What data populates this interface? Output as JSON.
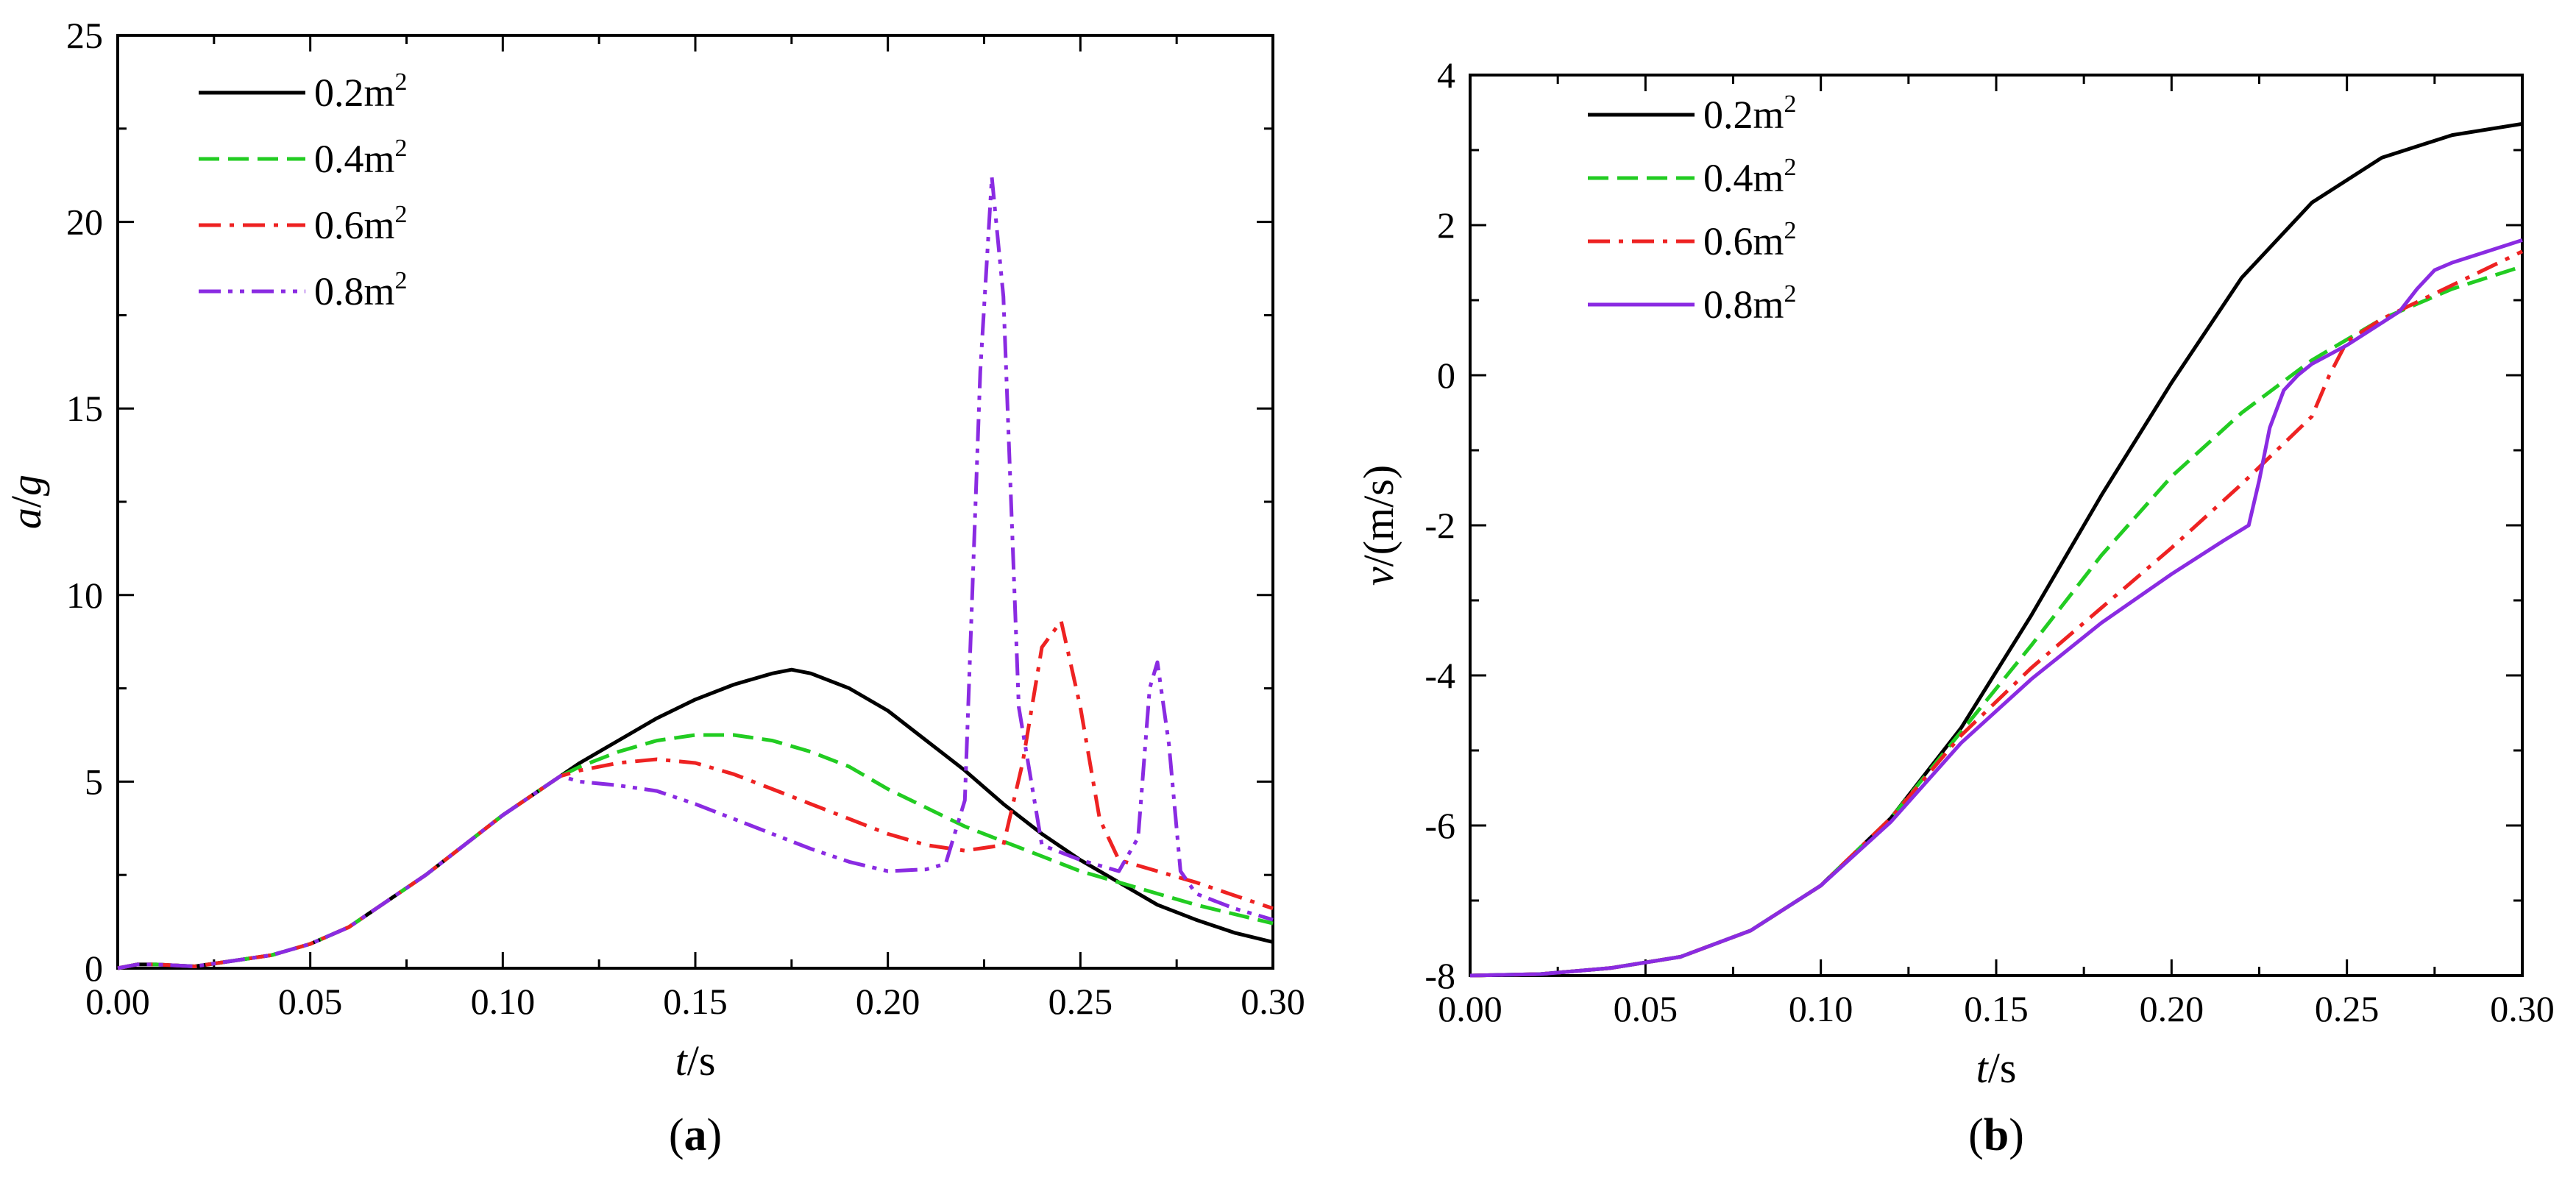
{
  "chart_data": [
    {
      "type": "line",
      "panel": "(a)",
      "panel_letter": "a",
      "xlabel_var": "t",
      "xlabel_unit": "/s",
      "ylabel_var": "a",
      "ylabel_unit": "/",
      "ylabel_var2": "g",
      "xlim": [
        0,
        0.3
      ],
      "ylim": [
        0,
        25
      ],
      "xticks": [
        0,
        0.05,
        0.1,
        0.15,
        0.2,
        0.25,
        0.3
      ],
      "xtick_labels": [
        "0.00",
        "0.05",
        "0.10",
        "0.15",
        "0.20",
        "0.25",
        "0.30"
      ],
      "yticks": [
        0,
        5,
        10,
        15,
        20,
        25
      ],
      "ytick_labels": [
        "0",
        "5",
        "10",
        "15",
        "20",
        "25"
      ],
      "legend_position": "top-left",
      "series": [
        {
          "name": "0.2m",
          "sup": "2",
          "color": "#000000",
          "dash": "solid",
          "x": [
            0,
            0.005,
            0.01,
            0.02,
            0.03,
            0.04,
            0.05,
            0.06,
            0.07,
            0.08,
            0.09,
            0.1,
            0.11,
            0.115,
            0.12,
            0.13,
            0.14,
            0.15,
            0.16,
            0.17,
            0.175,
            0.18,
            0.19,
            0.2,
            0.21,
            0.22,
            0.23,
            0.24,
            0.25,
            0.26,
            0.27,
            0.28,
            0.29,
            0.3
          ],
          "y": [
            0,
            0.1,
            0.1,
            0.05,
            0.2,
            0.35,
            0.65,
            1.1,
            1.8,
            2.5,
            3.3,
            4.1,
            4.8,
            5.15,
            5.5,
            6.1,
            6.7,
            7.2,
            7.6,
            7.9,
            8.0,
            7.9,
            7.5,
            6.9,
            6.1,
            5.3,
            4.4,
            3.6,
            2.9,
            2.3,
            1.7,
            1.3,
            0.95,
            0.7
          ]
        },
        {
          "name": "0.4m",
          "sup": "2",
          "color": "#22cc22",
          "dash": "dashed",
          "x": [
            0,
            0.005,
            0.01,
            0.02,
            0.03,
            0.04,
            0.05,
            0.06,
            0.07,
            0.08,
            0.09,
            0.1,
            0.11,
            0.115,
            0.12,
            0.13,
            0.14,
            0.15,
            0.16,
            0.17,
            0.18,
            0.19,
            0.2,
            0.21,
            0.22,
            0.23,
            0.24,
            0.25,
            0.26,
            0.27,
            0.28,
            0.29,
            0.3
          ],
          "y": [
            0,
            0.1,
            0.1,
            0.05,
            0.2,
            0.35,
            0.65,
            1.1,
            1.8,
            2.5,
            3.3,
            4.1,
            4.8,
            5.15,
            5.4,
            5.8,
            6.1,
            6.25,
            6.25,
            6.1,
            5.8,
            5.4,
            4.8,
            4.3,
            3.8,
            3.4,
            3.0,
            2.6,
            2.3,
            2.0,
            1.7,
            1.45,
            1.2
          ]
        },
        {
          "name": "0.6m",
          "sup": "2",
          "color": "#ee2222",
          "dash": "dashdot",
          "x": [
            0,
            0.005,
            0.01,
            0.02,
            0.03,
            0.04,
            0.05,
            0.06,
            0.07,
            0.08,
            0.09,
            0.1,
            0.11,
            0.115,
            0.12,
            0.13,
            0.14,
            0.15,
            0.16,
            0.17,
            0.18,
            0.19,
            0.2,
            0.21,
            0.22,
            0.23,
            0.235,
            0.24,
            0.245,
            0.25,
            0.255,
            0.26,
            0.27,
            0.28,
            0.29,
            0.3
          ],
          "y": [
            0,
            0.1,
            0.1,
            0.05,
            0.2,
            0.35,
            0.65,
            1.1,
            1.8,
            2.5,
            3.3,
            4.1,
            4.8,
            5.15,
            5.3,
            5.5,
            5.6,
            5.5,
            5.2,
            4.8,
            4.4,
            4.0,
            3.6,
            3.3,
            3.15,
            3.3,
            5.5,
            8.6,
            9.3,
            7.0,
            4.0,
            2.9,
            2.6,
            2.3,
            1.95,
            1.6
          ]
        },
        {
          "name": "0.8m",
          "sup": "2",
          "color": "#8a2be2",
          "dash": "dashdotdot",
          "x": [
            0,
            0.005,
            0.01,
            0.02,
            0.03,
            0.04,
            0.05,
            0.06,
            0.07,
            0.08,
            0.09,
            0.1,
            0.11,
            0.115,
            0.12,
            0.13,
            0.14,
            0.15,
            0.16,
            0.17,
            0.18,
            0.19,
            0.2,
            0.21,
            0.215,
            0.22,
            0.224,
            0.227,
            0.23,
            0.234,
            0.24,
            0.25,
            0.26,
            0.265,
            0.268,
            0.27,
            0.273,
            0.276,
            0.28,
            0.29,
            0.3
          ],
          "y": [
            0,
            0.1,
            0.1,
            0.05,
            0.2,
            0.35,
            0.65,
            1.1,
            1.8,
            2.5,
            3.3,
            4.1,
            4.8,
            5.15,
            5.0,
            4.9,
            4.75,
            4.4,
            4.0,
            3.6,
            3.2,
            2.85,
            2.6,
            2.65,
            2.8,
            4.5,
            16.0,
            21.2,
            18.0,
            7.0,
            3.3,
            2.9,
            2.6,
            3.5,
            7.5,
            8.2,
            6.0,
            2.6,
            2.0,
            1.6,
            1.3
          ]
        }
      ]
    },
    {
      "type": "line",
      "panel": "(b)",
      "panel_letter": "b",
      "xlabel_var": "t",
      "xlabel_unit": "/s",
      "ylabel_var": "v",
      "ylabel_unit": "/(m/s)",
      "xlim": [
        0,
        0.3
      ],
      "ylim": [
        -8,
        4
      ],
      "xticks": [
        0,
        0.05,
        0.1,
        0.15,
        0.2,
        0.25,
        0.3
      ],
      "xtick_labels": [
        "0.00",
        "0.05",
        "0.10",
        "0.15",
        "0.20",
        "0.25",
        "0.30"
      ],
      "yticks": [
        -8,
        -6,
        -4,
        -2,
        0,
        2,
        4
      ],
      "ytick_labels": [
        "-8",
        "-6",
        "-4",
        "-2",
        "0",
        "2",
        "4"
      ],
      "legend_position": "top-left",
      "series": [
        {
          "name": "0.2m",
          "sup": "2",
          "color": "#000000",
          "dash": "solid",
          "x": [
            0,
            0.02,
            0.04,
            0.06,
            0.08,
            0.1,
            0.12,
            0.14,
            0.16,
            0.18,
            0.2,
            0.22,
            0.24,
            0.26,
            0.28,
            0.3
          ],
          "y": [
            -8.0,
            -7.98,
            -7.9,
            -7.75,
            -7.4,
            -6.8,
            -5.9,
            -4.7,
            -3.2,
            -1.6,
            -0.1,
            1.3,
            2.3,
            2.9,
            3.2,
            3.35
          ]
        },
        {
          "name": "0.4m",
          "sup": "2",
          "color": "#22cc22",
          "dash": "dashed",
          "x": [
            0,
            0.02,
            0.04,
            0.06,
            0.08,
            0.1,
            0.12,
            0.14,
            0.16,
            0.18,
            0.2,
            0.22,
            0.24,
            0.26,
            0.28,
            0.3
          ],
          "y": [
            -8.0,
            -7.98,
            -7.9,
            -7.75,
            -7.4,
            -6.8,
            -5.9,
            -4.75,
            -3.6,
            -2.4,
            -1.35,
            -0.5,
            0.2,
            0.75,
            1.15,
            1.45
          ]
        },
        {
          "name": "0.6m",
          "sup": "2",
          "color": "#ee2222",
          "dash": "dashdot",
          "x": [
            0,
            0.02,
            0.04,
            0.06,
            0.08,
            0.1,
            0.12,
            0.14,
            0.16,
            0.18,
            0.2,
            0.22,
            0.23,
            0.24,
            0.245,
            0.25,
            0.26,
            0.28,
            0.3
          ],
          "y": [
            -8.0,
            -7.98,
            -7.9,
            -7.75,
            -7.4,
            -6.8,
            -5.9,
            -4.8,
            -3.9,
            -3.1,
            -2.3,
            -1.45,
            -1.0,
            -0.55,
            0.0,
            0.45,
            0.75,
            1.2,
            1.65
          ]
        },
        {
          "name": "0.8m",
          "sup": "2",
          "color": "#8a2be2",
          "dash": "solid",
          "x": [
            0,
            0.02,
            0.04,
            0.06,
            0.08,
            0.1,
            0.12,
            0.14,
            0.16,
            0.18,
            0.2,
            0.215,
            0.222,
            0.225,
            0.228,
            0.232,
            0.236,
            0.24,
            0.25,
            0.26,
            0.265,
            0.27,
            0.275,
            0.28,
            0.29,
            0.3
          ],
          "y": [
            -8.0,
            -7.98,
            -7.9,
            -7.75,
            -7.4,
            -6.8,
            -5.95,
            -4.9,
            -4.05,
            -3.3,
            -2.65,
            -2.2,
            -2.0,
            -1.4,
            -0.7,
            -0.2,
            0.0,
            0.15,
            0.4,
            0.7,
            0.85,
            1.15,
            1.4,
            1.5,
            1.65,
            1.8
          ]
        }
      ]
    }
  ]
}
